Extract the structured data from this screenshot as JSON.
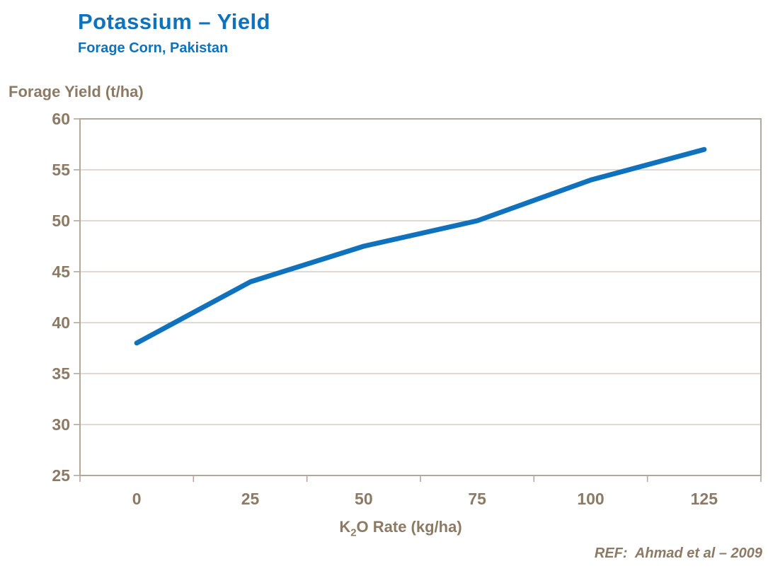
{
  "header": {
    "title": "Potassium – Yield",
    "subtitle": "Forage Corn, Pakistan"
  },
  "chart_data": {
    "type": "line",
    "title": "Potassium – Yield",
    "subtitle": "Forage Corn, Pakistan",
    "x": [
      0,
      25,
      50,
      75,
      100,
      125
    ],
    "series": [
      {
        "name": "Forage Yield",
        "values": [
          38,
          44,
          47.5,
          50,
          54,
          57
        ]
      }
    ],
    "xlabel": {
      "pre": "K",
      "sub": "2",
      "post": "O Rate (kg/ha)"
    },
    "ylabel": "Forage Yield (t/ha)",
    "ylim": [
      25,
      60
    ],
    "yticks": [
      25,
      30,
      35,
      40,
      45,
      50,
      55,
      60
    ],
    "xticks": [
      0,
      25,
      50,
      75,
      100,
      125
    ],
    "grid": "horizontal",
    "legend_position": "none",
    "colors": {
      "line": "#1072bc",
      "title": "#0f72bc",
      "axis_text": "#8c7a64",
      "frame": "#b3a89c",
      "gridline": "#cdc4ba",
      "background": "#ffffff"
    }
  },
  "footer": {
    "ref": "REF:  Ahmad et al – 2009"
  }
}
